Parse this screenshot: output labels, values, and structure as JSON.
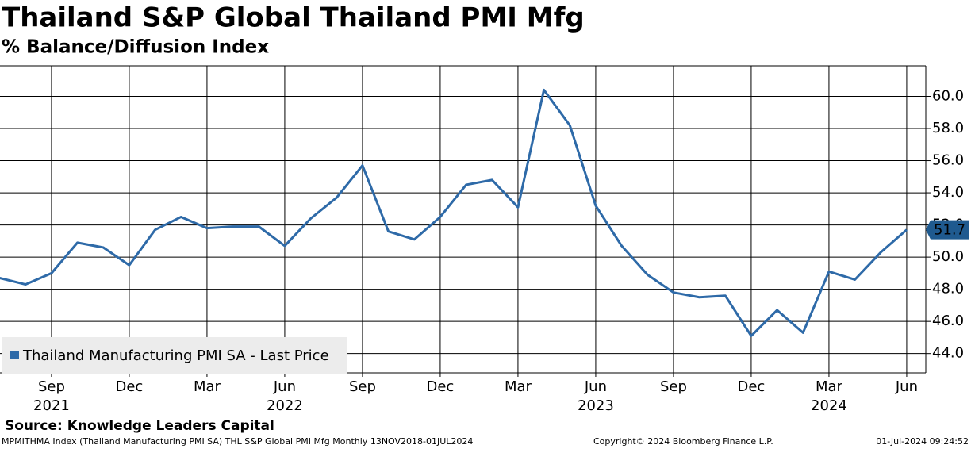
{
  "chart_data": {
    "type": "line",
    "title": "Thailand S&P Global Thailand PMI Mfg",
    "subtitle": "% Balance/Diffusion Index",
    "x": [
      "2021-07",
      "2021-08",
      "2021-09",
      "2021-10",
      "2021-11",
      "2021-12",
      "2022-01",
      "2022-02",
      "2022-03",
      "2022-04",
      "2022-05",
      "2022-06",
      "2022-07",
      "2022-08",
      "2022-09",
      "2022-10",
      "2022-11",
      "2022-12",
      "2023-01",
      "2023-02",
      "2023-03",
      "2023-04",
      "2023-05",
      "2023-06",
      "2023-07",
      "2023-08",
      "2023-09",
      "2023-10",
      "2023-11",
      "2023-12",
      "2024-01",
      "2024-02",
      "2024-03",
      "2024-04",
      "2024-05",
      "2024-06"
    ],
    "series": [
      {
        "name": "Thailand Manufacturing PMI SA - Last Price",
        "color": "#2e6aa8",
        "values": [
          48.7,
          48.3,
          49.0,
          50.9,
          50.6,
          49.5,
          51.7,
          52.5,
          51.8,
          51.9,
          51.9,
          50.7,
          52.4,
          53.7,
          55.7,
          51.6,
          51.1,
          52.5,
          54.5,
          54.8,
          53.1,
          60.4,
          58.2,
          53.2,
          50.7,
          48.9,
          47.8,
          47.5,
          47.6,
          45.1,
          46.7,
          45.3,
          49.1,
          48.6,
          50.3,
          51.7
        ]
      }
    ],
    "ylim": [
      42.8,
      61.9
    ],
    "yticks": [
      {
        "value": 44,
        "label": "44.0"
      },
      {
        "value": 46,
        "label": "46.0"
      },
      {
        "value": 48,
        "label": "48.0"
      },
      {
        "value": 50,
        "label": "50.0"
      },
      {
        "value": 52,
        "label": "52.0"
      },
      {
        "value": 54,
        "label": "54.0"
      },
      {
        "value": 56,
        "label": "56.0"
      },
      {
        "value": 58,
        "label": "58.0"
      },
      {
        "value": 60,
        "label": "60.0"
      }
    ],
    "xticks": [
      {
        "value": "2021-09",
        "label": "Sep"
      },
      {
        "value": "2021-12",
        "label": "Dec"
      },
      {
        "value": "2022-03",
        "label": "Mar"
      },
      {
        "value": "2022-06",
        "label": "Jun"
      },
      {
        "value": "2022-09",
        "label": "Sep"
      },
      {
        "value": "2022-12",
        "label": "Dec"
      },
      {
        "value": "2023-03",
        "label": "Mar"
      },
      {
        "value": "2023-06",
        "label": "Jun"
      },
      {
        "value": "2023-09",
        "label": "Sep"
      },
      {
        "value": "2023-12",
        "label": "Dec"
      },
      {
        "value": "2024-03",
        "label": "Mar"
      },
      {
        "value": "2024-06",
        "label": "Jun"
      }
    ],
    "year_ticks": [
      {
        "value": "2021-09",
        "label": "2021"
      },
      {
        "value": "2022-06",
        "label": "2022"
      },
      {
        "value": "2023-06",
        "label": "2023"
      },
      {
        "value": "2024-03",
        "label": "2024"
      }
    ],
    "grid": true,
    "legend": "lower left",
    "source": "Source: Knowledge Leaders Capital",
    "footer_left": "MPMITHMA Index (Thailand Manufacturing PMI SA) THL S&P Global PMI Mfg  Monthly 13NOV2018-01JUL2024",
    "footer_center": "Copyright© 2024 Bloomberg Finance L.P.",
    "footer_right": "01-Jul-2024 09:24:52"
  }
}
